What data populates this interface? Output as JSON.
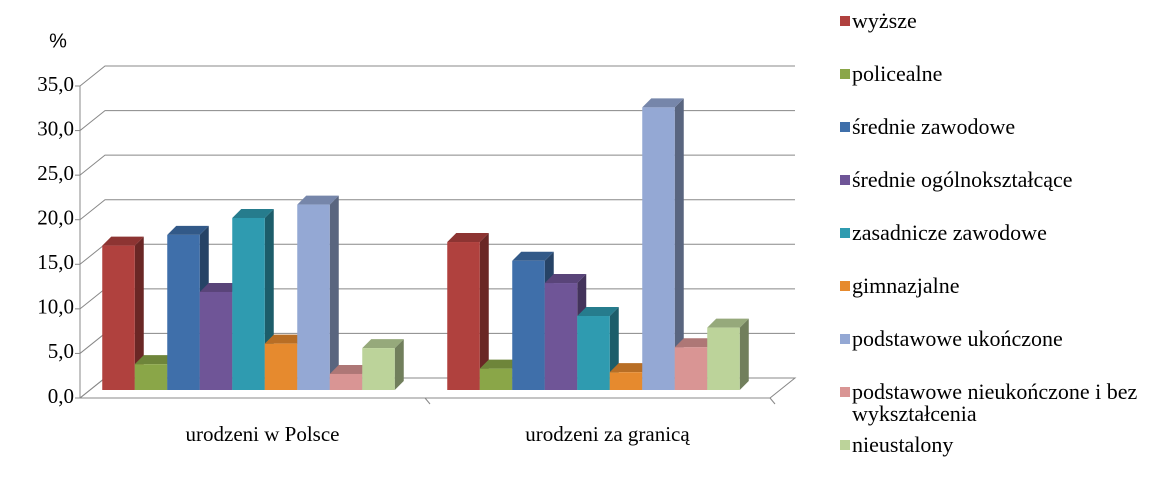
{
  "chart_data": {
    "type": "bar3d",
    "y_label": "%",
    "categories": [
      "urodzeni w Polsce",
      "urodzeni za granicą"
    ],
    "ylim": [
      0,
      35
    ],
    "yticks": [
      {
        "value": 0,
        "label": "0,0"
      },
      {
        "value": 5,
        "label": "5,0"
      },
      {
        "value": 10,
        "label": "10,0"
      },
      {
        "value": 15,
        "label": "15,0"
      },
      {
        "value": 20,
        "label": "20,0"
      },
      {
        "value": 25,
        "label": "25,0"
      },
      {
        "value": 30,
        "label": "30,0"
      },
      {
        "value": 35,
        "label": "35,0"
      }
    ],
    "grid": true,
    "series": [
      {
        "name": "wyższe",
        "color": "#b0413e",
        "values": [
          16.2,
          16.6
        ]
      },
      {
        "name": "policealne",
        "color": "#8aa648",
        "values": [
          2.9,
          2.4
        ]
      },
      {
        "name": "średnie zawodowe",
        "color": "#3f6faa",
        "values": [
          17.4,
          14.5
        ]
      },
      {
        "name": "średnie ogólnokształcące",
        "color": "#6f5597",
        "values": [
          11.0,
          12.0
        ]
      },
      {
        "name": "zasadnicze zawodowe",
        "color": "#2f9bb0",
        "values": [
          19.3,
          8.3
        ]
      },
      {
        "name": "gimnazjalne",
        "color": "#e68a2e",
        "values": [
          5.2,
          2.0
        ]
      },
      {
        "name": "podstawowe ukończone",
        "color": "#94a8d4",
        "values": [
          20.8,
          31.7
        ]
      },
      {
        "name": "podstawowe nieukończone i bez wykształcenia",
        "color": "#d99594",
        "values": [
          1.8,
          4.8
        ]
      },
      {
        "name": "nieustalony",
        "color": "#bcd39a",
        "values": [
          4.7,
          7.0
        ]
      }
    ]
  }
}
